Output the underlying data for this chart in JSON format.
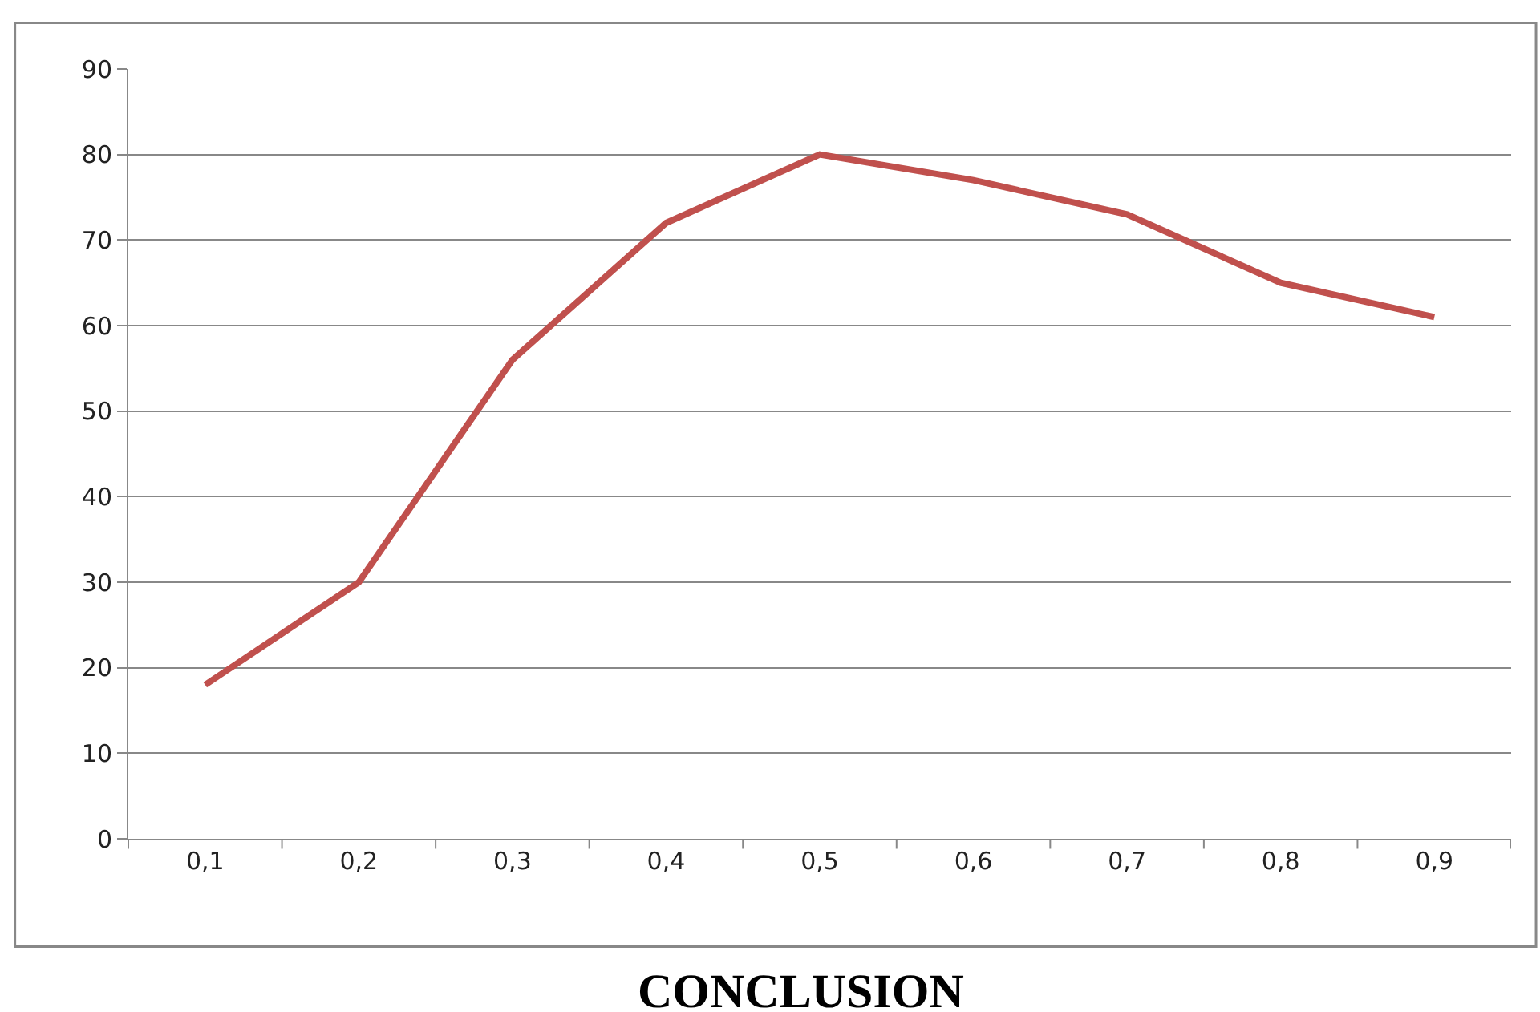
{
  "chart_data": {
    "type": "line",
    "title": "CONCLUSION",
    "categories": [
      "0,1",
      "0,2",
      "0,3",
      "0,4",
      "0,5",
      "0,6",
      "0,7",
      "0,8",
      "0,9"
    ],
    "series": [
      {
        "color": "#c0504d",
        "values": [
          18,
          30,
          56,
          72,
          80,
          77,
          73,
          65,
          61
        ]
      }
    ],
    "ylim": [
      0,
      90
    ],
    "yticks": [
      0,
      10,
      20,
      30,
      40,
      50,
      60,
      70,
      80,
      90
    ],
    "grid": "y",
    "legend": false,
    "marker": "none",
    "line_style": "solid"
  }
}
